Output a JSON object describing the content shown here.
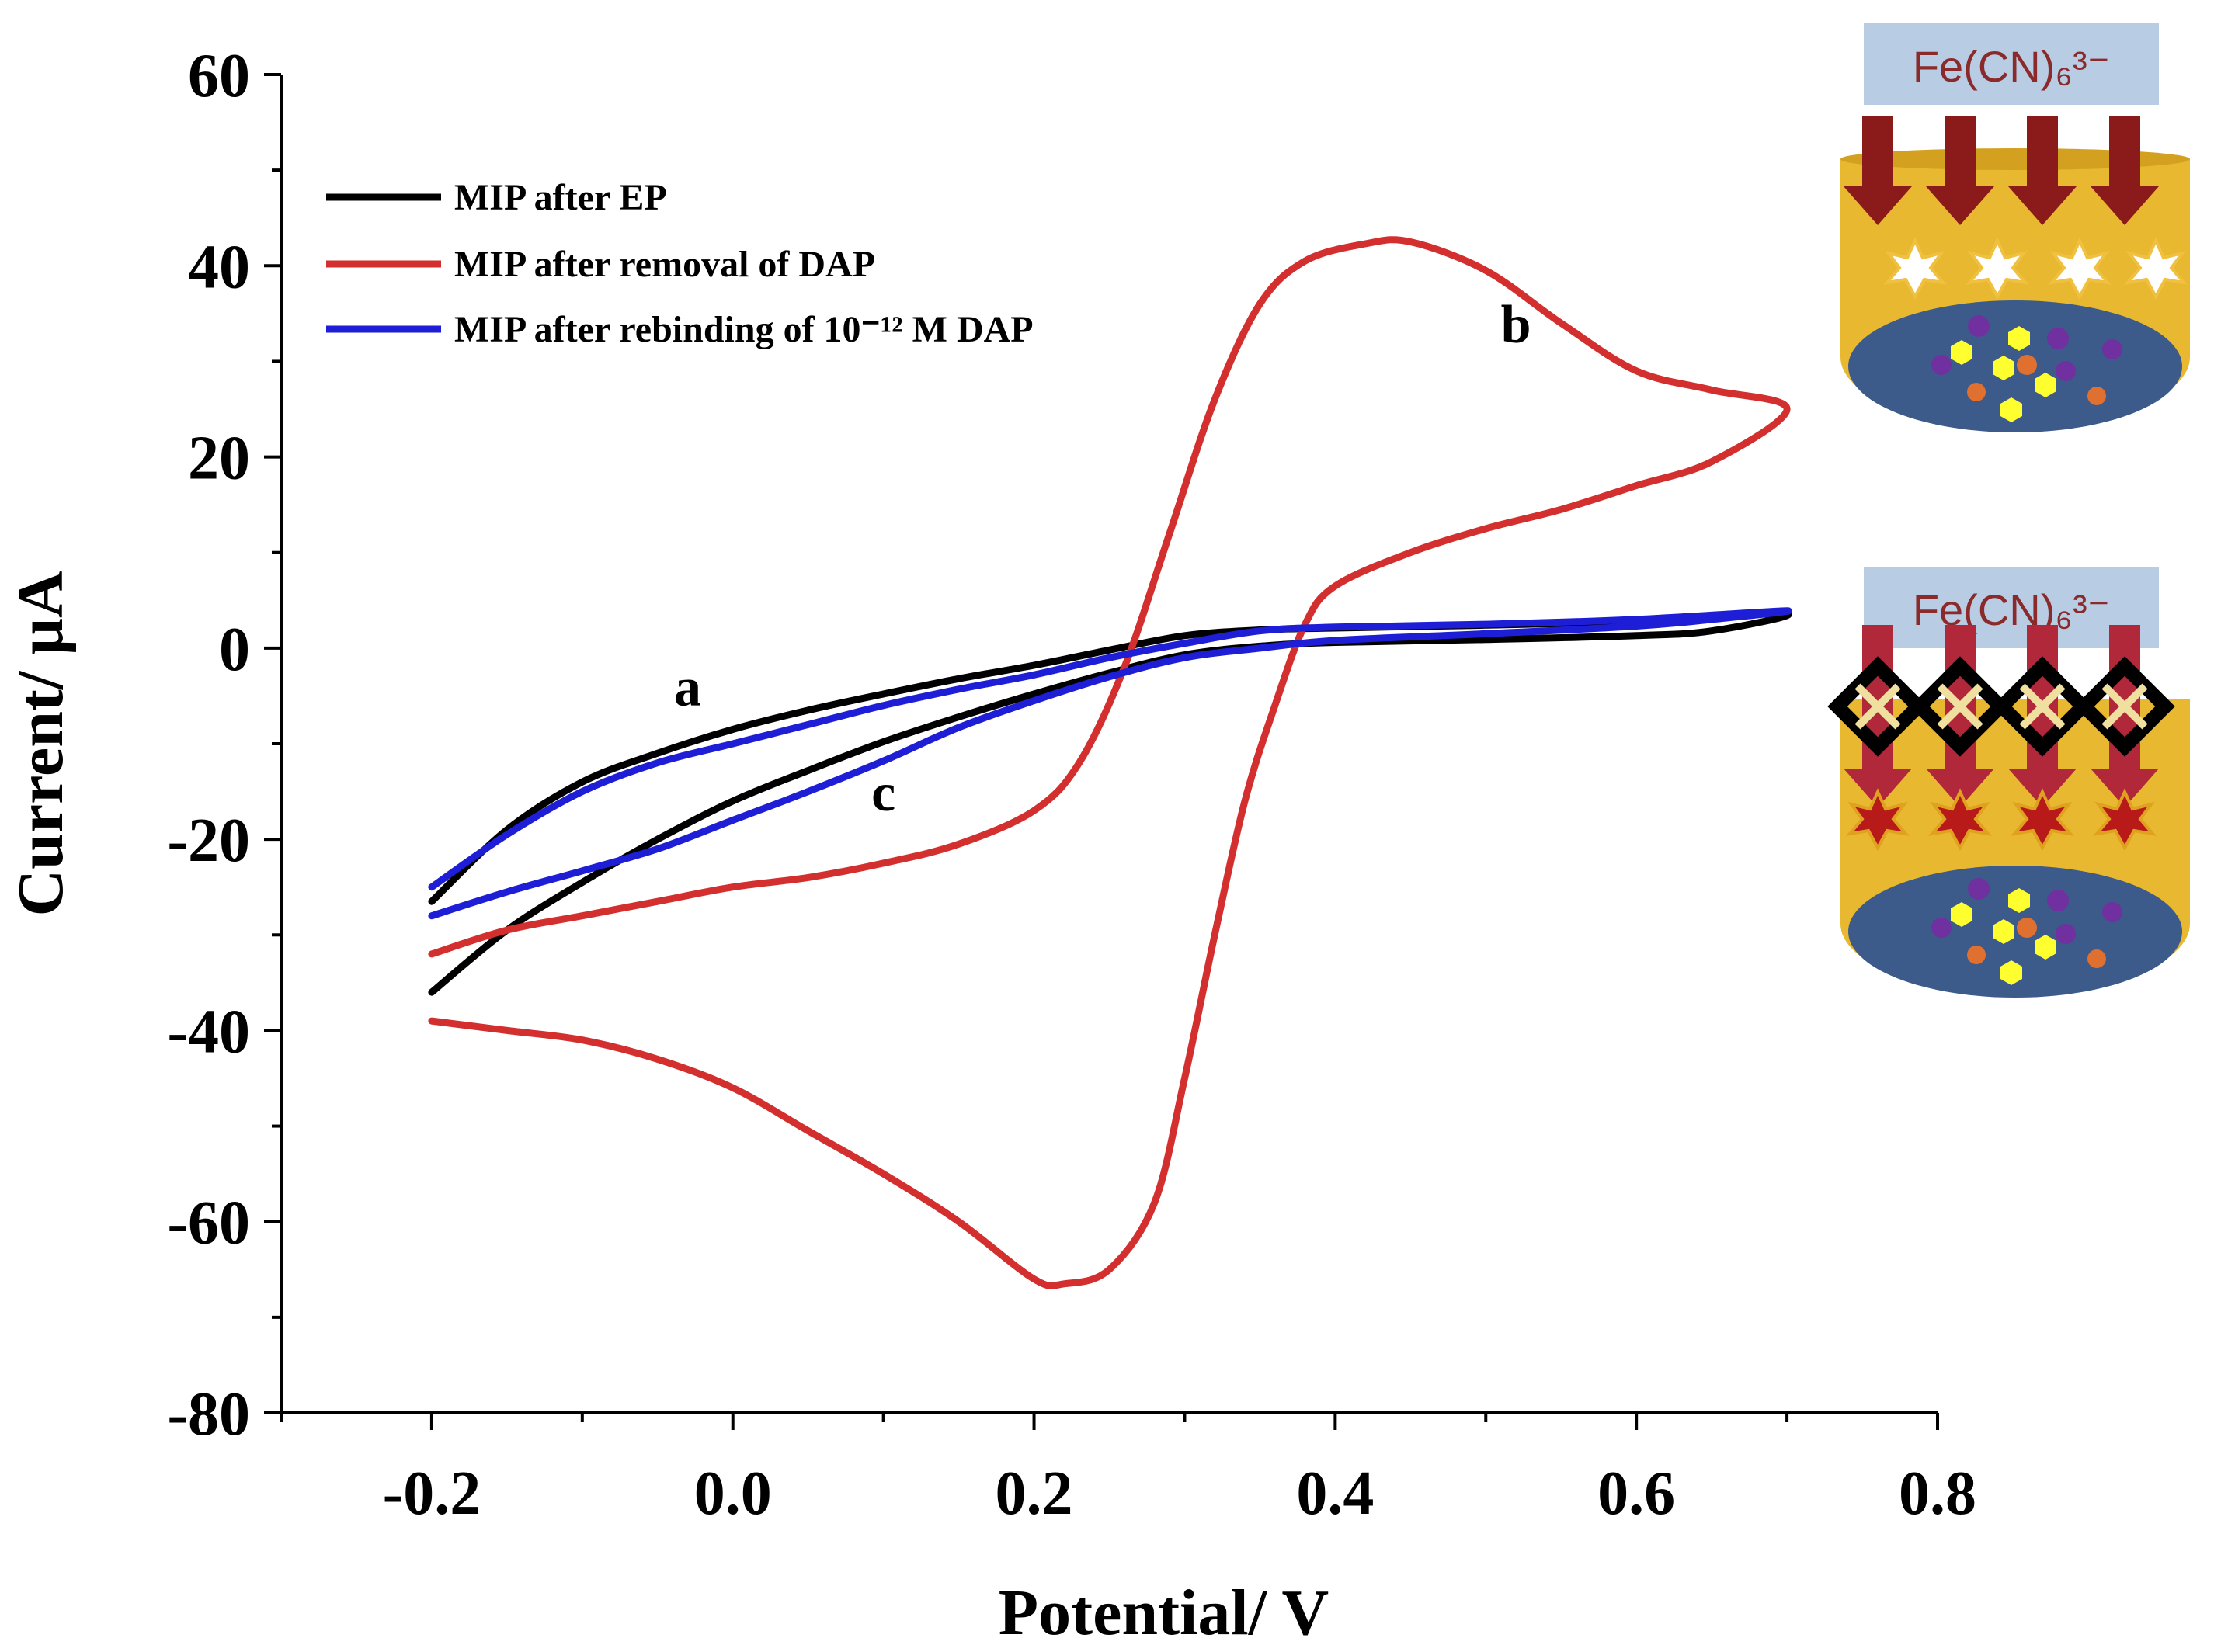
{
  "chart_data": {
    "type": "line",
    "title": "",
    "xlabel": "Potential/ V",
    "ylabel": "Current/ μA",
    "xlim": [
      -0.3,
      0.8
    ],
    "ylim": [
      -80,
      60
    ],
    "x_ticks": [
      -0.2,
      0.0,
      0.2,
      0.4,
      0.6,
      0.8
    ],
    "x_tick_labels": [
      "-0.2",
      "0.0",
      "0.2",
      "0.4",
      "0.6",
      "0.8"
    ],
    "y_ticks": [
      -80,
      -60,
      -40,
      -20,
      0,
      20,
      40,
      60
    ],
    "y_tick_labels": [
      "-80",
      "-60",
      "-40",
      "-20",
      "0",
      "20",
      "40",
      "60"
    ],
    "legend_position": "top-left",
    "series": [
      {
        "name": "MIP after EP",
        "color": "#000000",
        "label": "a",
        "points": [
          [
            -0.2,
            -26.5
          ],
          [
            -0.15,
            -19
          ],
          [
            -0.1,
            -14
          ],
          [
            -0.05,
            -11
          ],
          [
            0.0,
            -8.5
          ],
          [
            0.05,
            -6.5
          ],
          [
            0.1,
            -4.8
          ],
          [
            0.15,
            -3.2
          ],
          [
            0.2,
            -1.8
          ],
          [
            0.25,
            -0.2
          ],
          [
            0.3,
            1.3
          ],
          [
            0.35,
            1.9
          ],
          [
            0.4,
            2.1
          ],
          [
            0.5,
            2.4
          ],
          [
            0.6,
            2.8
          ],
          [
            0.7,
            3.6
          ],
          [
            0.65,
            1.8
          ],
          [
            0.6,
            1.3
          ],
          [
            0.5,
            0.9
          ],
          [
            0.4,
            0.6
          ],
          [
            0.35,
            0.2
          ],
          [
            0.3,
            -0.7
          ],
          [
            0.25,
            -2.6
          ],
          [
            0.2,
            -4.8
          ],
          [
            0.15,
            -7.2
          ],
          [
            0.1,
            -9.8
          ],
          [
            0.05,
            -12.8
          ],
          [
            0.0,
            -16
          ],
          [
            -0.05,
            -20
          ],
          [
            -0.1,
            -24.5
          ],
          [
            -0.15,
            -29.5
          ],
          [
            -0.2,
            -36
          ]
        ]
      },
      {
        "name": "MIP after removal of DAP",
        "color": "#d32f2f",
        "label": "b",
        "points": [
          [
            -0.2,
            -32
          ],
          [
            -0.15,
            -29.5
          ],
          [
            -0.1,
            -28
          ],
          [
            -0.05,
            -26.5
          ],
          [
            0.0,
            -25
          ],
          [
            0.05,
            -24
          ],
          [
            0.1,
            -22.5
          ],
          [
            0.15,
            -20.5
          ],
          [
            0.2,
            -17
          ],
          [
            0.23,
            -12
          ],
          [
            0.26,
            -2
          ],
          [
            0.29,
            12
          ],
          [
            0.32,
            26
          ],
          [
            0.35,
            36
          ],
          [
            0.38,
            40.5
          ],
          [
            0.42,
            42.3
          ],
          [
            0.45,
            42.5
          ],
          [
            0.5,
            39.5
          ],
          [
            0.55,
            34
          ],
          [
            0.6,
            29
          ],
          [
            0.65,
            27
          ],
          [
            0.7,
            25
          ],
          [
            0.65,
            19.5
          ],
          [
            0.6,
            17
          ],
          [
            0.55,
            14.5
          ],
          [
            0.5,
            12.5
          ],
          [
            0.45,
            10
          ],
          [
            0.4,
            6.5
          ],
          [
            0.38,
            2.5
          ],
          [
            0.36,
            -6
          ],
          [
            0.34,
            -16
          ],
          [
            0.32,
            -30
          ],
          [
            0.3,
            -45
          ],
          [
            0.28,
            -58
          ],
          [
            0.25,
            -65
          ],
          [
            0.22,
            -66.5
          ],
          [
            0.2,
            -66
          ],
          [
            0.15,
            -60
          ],
          [
            0.1,
            -55
          ],
          [
            0.05,
            -50.5
          ],
          [
            0.0,
            -46
          ],
          [
            -0.05,
            -43
          ],
          [
            -0.1,
            -41
          ],
          [
            -0.15,
            -40
          ],
          [
            -0.2,
            -39
          ]
        ]
      },
      {
        "name": "MIP after rebinding of 10⁻¹² M DAP",
        "color": "#1e1ed6",
        "label": "c",
        "points": [
          [
            -0.2,
            -25
          ],
          [
            -0.15,
            -19.5
          ],
          [
            -0.1,
            -15
          ],
          [
            -0.05,
            -12
          ],
          [
            0.0,
            -10
          ],
          [
            0.05,
            -8
          ],
          [
            0.1,
            -6
          ],
          [
            0.15,
            -4.3
          ],
          [
            0.2,
            -2.8
          ],
          [
            0.25,
            -1
          ],
          [
            0.3,
            0.5
          ],
          [
            0.35,
            1.8
          ],
          [
            0.4,
            2.2
          ],
          [
            0.5,
            2.5
          ],
          [
            0.6,
            3
          ],
          [
            0.7,
            3.9
          ],
          [
            0.65,
            3
          ],
          [
            0.6,
            2.3
          ],
          [
            0.5,
            1.5
          ],
          [
            0.4,
            0.8
          ],
          [
            0.35,
            0
          ],
          [
            0.3,
            -1
          ],
          [
            0.25,
            -3
          ],
          [
            0.2,
            -5.5
          ],
          [
            0.15,
            -8.3
          ],
          [
            0.1,
            -11.8
          ],
          [
            0.05,
            -15
          ],
          [
            0.0,
            -18
          ],
          [
            -0.05,
            -21
          ],
          [
            -0.1,
            -23.3
          ],
          [
            -0.15,
            -25.5
          ],
          [
            -0.2,
            -28
          ]
        ]
      }
    ],
    "annotations": [
      {
        "text": "a",
        "x": -0.03,
        "y": -6
      },
      {
        "text": "b",
        "x": 0.52,
        "y": 32
      },
      {
        "text": "c",
        "x": 0.1,
        "y": -17
      }
    ]
  },
  "legend": {
    "entries": [
      {
        "text": "MIP after EP",
        "color": "#000000"
      },
      {
        "text": "MIP after removal of DAP",
        "color": "#d32f2f"
      },
      {
        "text": "MIP after rebinding of 10⁻¹² M DAP",
        "color": "#1e1ed6"
      }
    ]
  },
  "schematic": {
    "top_label": "Fe(CN)₆³⁻",
    "bottom_label": "Fe(CN)₆³⁻"
  }
}
